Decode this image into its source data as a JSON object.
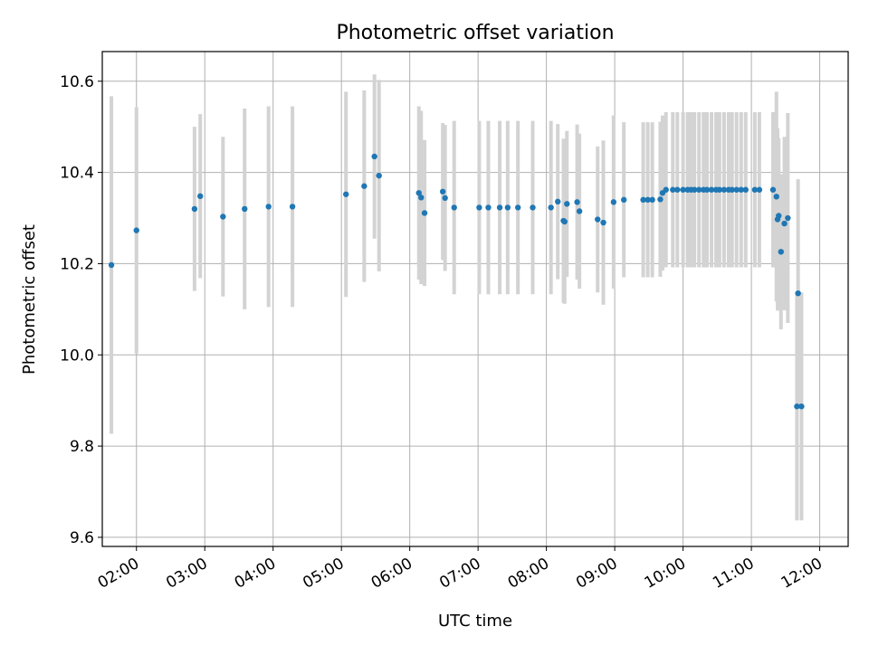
{
  "chart_data": {
    "type": "scatter",
    "title": "Photometric offset variation",
    "xlabel": "UTC time",
    "ylabel": "Photometric offset",
    "grid": true,
    "xlim": [
      "01:30",
      "12:25"
    ],
    "ylim": [
      9.58,
      10.665
    ],
    "x_ticks": [
      "02:00",
      "03:00",
      "04:00",
      "05:00",
      "06:00",
      "07:00",
      "08:00",
      "09:00",
      "10:00",
      "11:00",
      "12:00"
    ],
    "y_ticks": [
      "9.6",
      "9.8",
      "10.0",
      "10.2",
      "10.4",
      "10.6"
    ],
    "point_color": "#1f77b4",
    "errorbar_color": "#d3d3d3",
    "series": [
      {
        "x": [
          "01:38",
          "02:00",
          "02:51",
          "02:56",
          "03:16",
          "03:35",
          "03:56",
          "04:17",
          "05:04",
          "05:20",
          "05:29",
          "05:33",
          "06:08",
          "06:10",
          "06:13",
          "06:29",
          "06:31",
          "06:39",
          "07:01",
          "07:09",
          "07:19",
          "07:26",
          "07:35",
          "07:48",
          "08:04",
          "08:10",
          "08:15",
          "08:16",
          "08:18",
          "08:27",
          "08:29",
          "08:45",
          "08:50",
          "08:59",
          "09:08",
          "09:25",
          "09:29",
          "09:33",
          "09:40",
          "09:42",
          "09:45",
          "09:51",
          "09:55",
          "10:00",
          "10:04",
          "10:07",
          "10:10",
          "10:14",
          "10:18",
          "10:21",
          "10:25",
          "10:29",
          "10:32",
          "10:36",
          "10:40",
          "10:43",
          "10:47",
          "10:51",
          "10:55",
          "11:03",
          "11:07",
          "11:19",
          "11:22",
          "11:23",
          "11:24",
          "11:26",
          "11:29",
          "11:32",
          "11:41",
          "11:40",
          "11:44"
        ],
        "y": [
          10.197,
          10.273,
          10.32,
          10.348,
          10.303,
          10.32,
          10.325,
          10.325,
          10.352,
          10.37,
          10.435,
          10.393,
          10.355,
          10.345,
          10.311,
          10.358,
          10.344,
          10.323,
          10.323,
          10.323,
          10.323,
          10.323,
          10.323,
          10.323,
          10.323,
          10.336,
          10.294,
          10.292,
          10.331,
          10.335,
          10.315,
          10.297,
          10.29,
          10.335,
          10.34,
          10.34,
          10.34,
          10.34,
          10.341,
          10.355,
          10.362,
          10.362,
          10.362,
          10.362,
          10.362,
          10.362,
          10.362,
          10.362,
          10.362,
          10.362,
          10.362,
          10.362,
          10.362,
          10.362,
          10.362,
          10.362,
          10.362,
          10.362,
          10.362,
          10.362,
          10.362,
          10.362,
          10.347,
          10.297,
          10.305,
          10.226,
          10.288,
          10.3,
          10.135,
          9.887,
          9.887
        ],
        "err": [
          0.37,
          0.27,
          0.18,
          0.18,
          0.175,
          0.22,
          0.22,
          0.22,
          0.225,
          0.21,
          0.18,
          0.21,
          0.19,
          0.19,
          0.16,
          0.15,
          0.16,
          0.19,
          0.19,
          0.19,
          0.19,
          0.19,
          0.19,
          0.19,
          0.19,
          0.17,
          0.18,
          0.18,
          0.16,
          0.17,
          0.17,
          0.16,
          0.18,
          0.19,
          0.17,
          0.17,
          0.17,
          0.17,
          0.17,
          0.17,
          0.17,
          0.17,
          0.17,
          0.17,
          0.17,
          0.17,
          0.17,
          0.17,
          0.17,
          0.17,
          0.17,
          0.17,
          0.17,
          0.17,
          0.17,
          0.17,
          0.17,
          0.17,
          0.17,
          0.17,
          0.17,
          0.17,
          0.23,
          0.2,
          0.17,
          0.17,
          0.19,
          0.23,
          0.25,
          0.25,
          0.25
        ]
      }
    ]
  }
}
